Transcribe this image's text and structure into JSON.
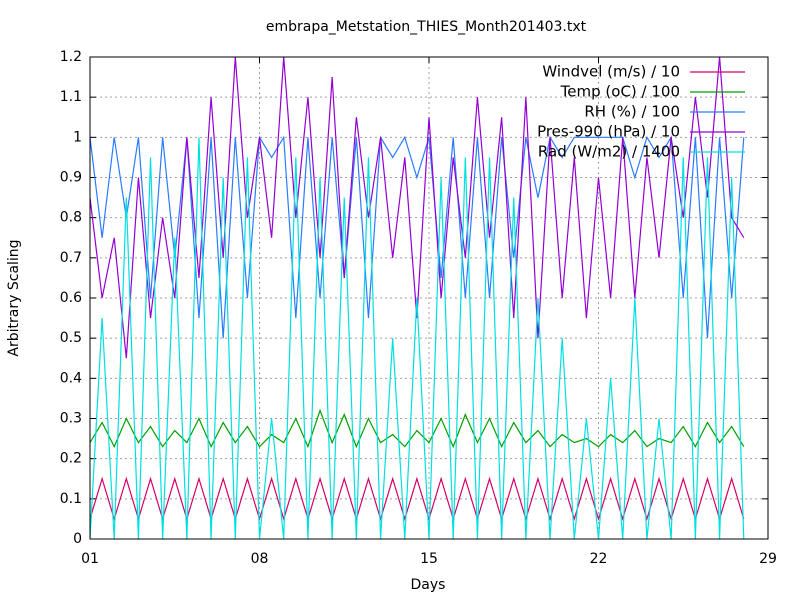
{
  "chart_data": {
    "type": "line",
    "title": "embrapa_Metstation_THIES_Month201403.txt",
    "xlabel": "Days",
    "ylabel": "Arbitrary Scaling",
    "xlim": [
      1,
      29
    ],
    "xticks": [
      {
        "value": 1,
        "label": "01"
      },
      {
        "value": 8,
        "label": "08"
      },
      15,
      22,
      29
    ],
    "ylim": [
      0,
      1.2
    ],
    "yticks": [
      0,
      0.1,
      0.2,
      0.3,
      0.4,
      0.5,
      0.6,
      0.7,
      0.8,
      0.9,
      1,
      1.1,
      1.2
    ],
    "grid": true,
    "legend": "top-right",
    "x": [
      1,
      1.5,
      2,
      2.5,
      3,
      3.5,
      4,
      4.5,
      5,
      5.5,
      6,
      6.5,
      7,
      7.5,
      8,
      8.5,
      9,
      9.5,
      10,
      10.5,
      11,
      11.5,
      12,
      12.5,
      13,
      13.5,
      14,
      14.5,
      15,
      15.5,
      16,
      16.5,
      17,
      17.5,
      18,
      18.5,
      19,
      19.5,
      20,
      20.5,
      21,
      21.5,
      22,
      22.5,
      23,
      23.5,
      24,
      24.5,
      25,
      25.5,
      26,
      26.5,
      27,
      27.5,
      28
    ],
    "series": [
      {
        "name": "Windvel (m/s) / 10",
        "color": "#d4006a",
        "values": [
          0.05,
          0.15,
          0.05,
          0.15,
          0.05,
          0.15,
          0.05,
          0.15,
          0.05,
          0.15,
          0.05,
          0.15,
          0.05,
          0.15,
          0.05,
          0.15,
          0.05,
          0.15,
          0.05,
          0.15,
          0.05,
          0.15,
          0.05,
          0.15,
          0.05,
          0.15,
          0.05,
          0.15,
          0.05,
          0.15,
          0.05,
          0.15,
          0.05,
          0.15,
          0.05,
          0.15,
          0.05,
          0.15,
          0.05,
          0.15,
          0.05,
          0.15,
          0.05,
          0.15,
          0.05,
          0.15,
          0.05,
          0.15,
          0.05,
          0.15,
          0.05,
          0.15,
          0.05,
          0.15,
          0.05
        ]
      },
      {
        "name": "Temp (oC) / 100",
        "color": "#00a000",
        "values": [
          0.24,
          0.29,
          0.23,
          0.3,
          0.24,
          0.28,
          0.23,
          0.27,
          0.24,
          0.3,
          0.23,
          0.29,
          0.24,
          0.28,
          0.23,
          0.26,
          0.24,
          0.3,
          0.23,
          0.32,
          0.24,
          0.31,
          0.23,
          0.3,
          0.24,
          0.26,
          0.23,
          0.27,
          0.24,
          0.3,
          0.23,
          0.31,
          0.24,
          0.3,
          0.23,
          0.29,
          0.24,
          0.27,
          0.23,
          0.26,
          0.24,
          0.25,
          0.23,
          0.26,
          0.24,
          0.27,
          0.23,
          0.25,
          0.24,
          0.28,
          0.23,
          0.29,
          0.24,
          0.28,
          0.23
        ]
      },
      {
        "name": "RH (%) / 100",
        "color": "#2a7bff",
        "values": [
          1,
          0.75,
          1,
          0.8,
          1,
          0.6,
          1,
          0.7,
          1,
          0.55,
          1,
          0.5,
          1,
          0.6,
          1,
          0.95,
          1,
          0.55,
          1,
          0.6,
          1,
          0.65,
          1,
          0.55,
          1,
          0.95,
          1,
          0.9,
          1,
          0.65,
          1,
          0.6,
          1,
          0.6,
          1,
          0.7,
          1,
          0.85,
          1,
          0.95,
          1,
          1,
          1,
          1,
          1,
          0.9,
          1,
          0.95,
          1,
          0.6,
          1,
          0.5,
          1,
          0.6,
          1
        ]
      },
      {
        "name": "Pres-990 (hPa) / 10",
        "color": "#9400d3",
        "values": [
          0.85,
          0.6,
          0.75,
          0.45,
          0.9,
          0.55,
          0.8,
          0.6,
          1.0,
          0.65,
          1.1,
          0.7,
          1.2,
          0.8,
          1.0,
          0.75,
          1.2,
          0.8,
          1.1,
          0.7,
          1.15,
          0.65,
          1.05,
          0.8,
          1.0,
          0.7,
          0.95,
          0.55,
          1.05,
          0.6,
          0.95,
          0.7,
          1.1,
          0.75,
          1.05,
          0.55,
          1.1,
          0.5,
          1.0,
          0.6,
          0.95,
          0.55,
          0.9,
          0.6,
          1.0,
          0.6,
          0.95,
          0.7,
          1.0,
          0.8,
          1.1,
          0.85,
          1.2,
          0.8,
          0.75
        ]
      },
      {
        "name": "Rad (W/m2) / 1400",
        "color": "#00e0e0",
        "values": [
          0,
          0.55,
          0,
          0.85,
          0,
          0.95,
          0,
          0.75,
          0,
          1.0,
          0,
          0.9,
          0,
          0.95,
          0,
          0.3,
          0,
          0.95,
          0,
          0.9,
          0,
          0.85,
          0,
          0.95,
          0,
          0.5,
          0,
          0.6,
          0,
          0.9,
          0,
          0.95,
          0,
          0.95,
          0,
          0.85,
          0,
          0.6,
          0,
          0.5,
          0,
          0.3,
          0,
          0.4,
          0,
          0.6,
          0,
          0.3,
          0,
          0.95,
          0,
          0.95,
          0,
          0.9,
          0
        ]
      }
    ]
  }
}
